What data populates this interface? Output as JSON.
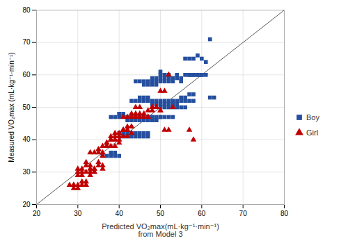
{
  "chart_data": {
    "type": "scatter",
    "xlabel": "Predicted VO₂max(mL·kg⁻¹·min⁻¹)\nfrom Model 3",
    "ylabel": "Measured VO₂max (mL·kg⁻¹·min⁻¹)",
    "xlim": [
      20,
      80
    ],
    "ylim": [
      20,
      80
    ],
    "xticks": [
      20,
      30,
      40,
      50,
      60,
      70,
      80
    ],
    "yticks": [
      20,
      30,
      40,
      50,
      60,
      70,
      80
    ],
    "grid": true,
    "legend": "right",
    "reference_line": {
      "x": [
        20,
        80
      ],
      "y": [
        20,
        80
      ],
      "color": "#595959"
    },
    "series": [
      {
        "name": "Boy",
        "color": "#254F9E",
        "marker": "square",
        "x": [
          44,
          45,
          46,
          46,
          47,
          47,
          48,
          48,
          48,
          49,
          49,
          49,
          50,
          50,
          50,
          50,
          51,
          51,
          51,
          52,
          52,
          52,
          53,
          53,
          54,
          54,
          55,
          55,
          56,
          56,
          57,
          57,
          58,
          58,
          59,
          59,
          60,
          60,
          61,
          62,
          43,
          44,
          45,
          45,
          46,
          46,
          47,
          47,
          48,
          48,
          49,
          49,
          50,
          50,
          51,
          51,
          52,
          52,
          53,
          53,
          54,
          54,
          55,
          55,
          56,
          56,
          57,
          57,
          58,
          58,
          59,
          60,
          61,
          62,
          63,
          38,
          39,
          40,
          40,
          41,
          41,
          42,
          42,
          43,
          43,
          44,
          44,
          45,
          45,
          46,
          46,
          47,
          47,
          48,
          48,
          49,
          49,
          50,
          50,
          51,
          51,
          52,
          52,
          53,
          53,
          54,
          55,
          56,
          57,
          58,
          36,
          37,
          38,
          38,
          39,
          39,
          40,
          40,
          41,
          41,
          42,
          42,
          43,
          43,
          44,
          44,
          45,
          45,
          46,
          46,
          47,
          47,
          48,
          48,
          49,
          50
        ],
        "values": [
          58,
          58,
          57,
          58,
          57,
          58,
          57,
          58,
          59,
          57,
          58,
          59,
          58,
          59,
          60,
          61,
          58,
          59,
          60,
          58,
          59,
          60,
          58,
          59,
          59,
          60,
          58,
          59,
          60,
          65,
          60,
          65,
          60,
          65,
          60,
          66,
          60,
          65,
          64,
          71,
          52,
          52,
          52,
          53,
          52,
          53,
          52,
          53,
          51,
          52,
          51,
          52,
          51,
          52,
          51,
          52,
          51,
          52,
          51,
          52,
          51,
          52,
          52,
          53,
          52,
          53,
          54,
          60,
          54,
          60,
          60,
          60,
          60,
          53,
          53,
          47,
          47,
          47,
          48,
          47,
          48,
          46,
          47,
          46,
          47,
          46,
          47,
          46,
          47,
          46,
          47,
          46,
          47,
          46,
          47,
          46,
          47,
          47,
          50,
          47,
          50,
          47,
          50,
          47,
          50,
          50,
          50,
          50,
          52,
          52,
          35,
          35,
          35,
          36,
          35,
          36,
          35,
          42,
          41,
          42,
          41,
          42,
          41,
          42,
          41,
          42,
          41,
          42,
          41,
          42,
          41,
          42,
          46,
          47,
          46,
          47
        ]
      },
      {
        "name": "Girl",
        "color": "#C00000",
        "marker": "triangle",
        "x": [
          28,
          29,
          29,
          30,
          30,
          31,
          31,
          32,
          32,
          33,
          33,
          34,
          34,
          35,
          35,
          36,
          36,
          37,
          37,
          38,
          38,
          39,
          39,
          40,
          40,
          41,
          41,
          42,
          42,
          43,
          43,
          44,
          44,
          45,
          46,
          47,
          48,
          49,
          50,
          51,
          52,
          53,
          57,
          58,
          29,
          30,
          30,
          31,
          31,
          32,
          32,
          33,
          33,
          34,
          34,
          35,
          35,
          36,
          36,
          37,
          37,
          38,
          38,
          39,
          39,
          40,
          40,
          41,
          41,
          42,
          42,
          43,
          43,
          44,
          44,
          45,
          45,
          46,
          46,
          47,
          47,
          48,
          49,
          50,
          51,
          52,
          30,
          31,
          32,
          33,
          34,
          35,
          36,
          37,
          38,
          39,
          40,
          41,
          42,
          43,
          44,
          45,
          46,
          47,
          48,
          49,
          50
        ],
        "values": [
          26,
          25,
          26,
          25,
          26,
          26,
          27,
          26,
          27,
          29,
          30,
          30,
          31,
          32,
          33,
          31,
          32,
          38,
          39,
          38,
          40,
          38,
          40,
          39,
          41,
          43,
          47,
          43,
          47,
          47,
          48,
          47,
          50,
          50,
          47,
          47,
          50,
          50,
          49,
          43,
          43,
          50,
          43,
          40,
          26,
          30,
          31,
          30,
          31,
          32,
          33,
          31,
          32,
          30,
          31,
          36,
          37,
          35,
          36,
          38,
          39,
          40,
          41,
          40,
          42,
          40,
          42,
          41,
          43,
          41,
          43,
          42,
          44,
          47,
          48,
          47,
          48,
          47,
          48,
          47,
          49,
          50,
          50,
          49,
          55,
          60,
          29,
          29,
          30,
          36,
          36,
          37,
          38,
          38,
          40,
          41,
          41,
          43,
          44,
          44,
          47,
          47,
          47,
          47,
          49,
          50,
          55
        ]
      }
    ]
  }
}
